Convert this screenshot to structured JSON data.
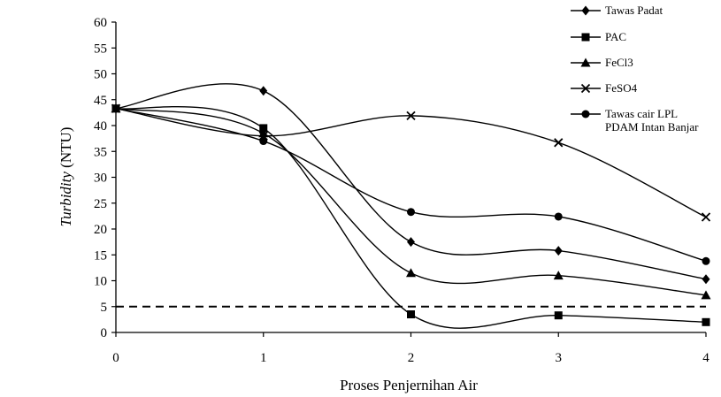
{
  "chart_data": {
    "type": "line",
    "title": "",
    "xlabel": "Proses Penjernihan Air",
    "ylabel_italic": "Turbidity",
    "ylabel_unit": "(NTU)",
    "x": [
      0,
      1,
      2,
      3,
      4
    ],
    "x_tick_labels": [
      "0",
      "1",
      "2",
      "3",
      "4"
    ],
    "y_tick_labels": [
      "0",
      "5",
      "10",
      "15",
      "20",
      "25",
      "30",
      "35",
      "40",
      "45",
      "50",
      "55",
      "60"
    ],
    "xlim": [
      0,
      4
    ],
    "ylim": [
      0,
      60
    ],
    "y_tick_step": 5,
    "grid": false,
    "legend_position": "top-right",
    "smooth_lines": true,
    "reference_line": {
      "y": 5,
      "style": "dashed"
    },
    "series": [
      {
        "name": "Tawas Padat",
        "marker": "diamond",
        "values": [
          43.3,
          46.7,
          17.5,
          15.8,
          10.3
        ]
      },
      {
        "name": "PAC",
        "marker": "square",
        "values": [
          43.3,
          39.5,
          3.5,
          3.3,
          2.0
        ]
      },
      {
        "name": "FeCl3",
        "marker": "triangle",
        "values": [
          43.3,
          38.5,
          11.5,
          11.0,
          7.2
        ]
      },
      {
        "name": "FeSO4",
        "marker": "cross",
        "values": [
          43.3,
          38.0,
          41.9,
          36.7,
          22.3
        ]
      },
      {
        "name": "Tawas cair LPL PDAM Intan Banjar",
        "legend_lines": [
          "Tawas cair LPL",
          "PDAM Intan Banjar"
        ],
        "marker": "circle",
        "values": [
          43.3,
          37.0,
          23.3,
          22.4,
          13.8
        ]
      }
    ]
  }
}
